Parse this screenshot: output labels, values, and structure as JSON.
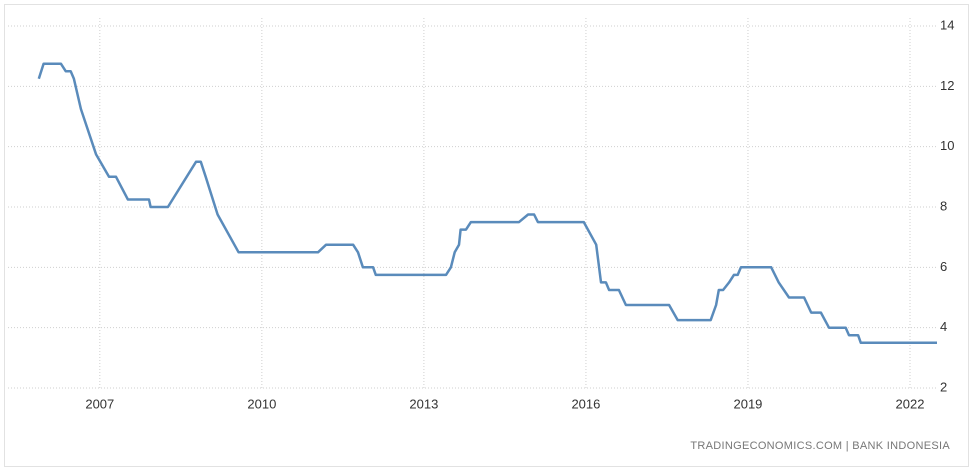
{
  "chart_data": {
    "type": "line",
    "source": "TRADINGECONOMICS.COM | BANK INDONESIA",
    "x": [
      2005.87,
      2005.96,
      2006.28,
      2006.37,
      2006.46,
      2006.52,
      2006.65,
      2006.93,
      2007.17,
      2007.3,
      2007.52,
      2007.91,
      2007.94,
      2008.26,
      2008.78,
      2008.87,
      2008.96,
      2009.18,
      2009.57,
      2011.04,
      2011.19,
      2011.69,
      2011.78,
      2011.87,
      2012.06,
      2012.11,
      2013.41,
      2013.5,
      2013.57,
      2013.65,
      2013.68,
      2013.78,
      2013.87,
      2014.76,
      2014.93,
      2015.04,
      2015.11,
      2015.96,
      2016.19,
      2016.28,
      2016.37,
      2016.43,
      2016.61,
      2016.74,
      2017.54,
      2017.7,
      2018.31,
      2018.41,
      2018.46,
      2018.54,
      2018.65,
      2018.74,
      2018.81,
      2018.87,
      2019.43,
      2019.57,
      2019.76,
      2020.04,
      2020.17,
      2020.35,
      2020.5,
      2020.81,
      2020.87,
      2021.04,
      2021.09,
      2022.5
    ],
    "series": [
      {
        "color": "#5a8bbb",
        "values": [
          12.25,
          12.75,
          12.75,
          12.5,
          12.5,
          12.25,
          11.25,
          9.75,
          9.0,
          9.0,
          8.25,
          8.25,
          8.0,
          8.0,
          9.5,
          9.5,
          9.0,
          7.75,
          6.5,
          6.5,
          6.75,
          6.75,
          6.5,
          6.0,
          6.0,
          5.75,
          5.75,
          6.0,
          6.5,
          6.75,
          7.25,
          7.25,
          7.5,
          7.5,
          7.75,
          7.75,
          7.5,
          7.5,
          6.75,
          5.5,
          5.5,
          5.25,
          5.25,
          4.75,
          4.75,
          4.25,
          4.25,
          4.75,
          5.25,
          5.25,
          5.5,
          5.75,
          5.75,
          6.0,
          6.0,
          5.5,
          5.0,
          5.0,
          4.5,
          4.5,
          4.0,
          4.0,
          3.75,
          3.75,
          3.5,
          3.5
        ]
      }
    ],
    "xlim": [
      2005.3,
      2022.5
    ],
    "xticks": [
      2007,
      2010,
      2013,
      2016,
      2019,
      2022
    ],
    "ylim": [
      2,
      14
    ],
    "yticks": [
      2,
      4,
      6,
      8,
      10,
      12,
      14
    ],
    "grid": true
  }
}
